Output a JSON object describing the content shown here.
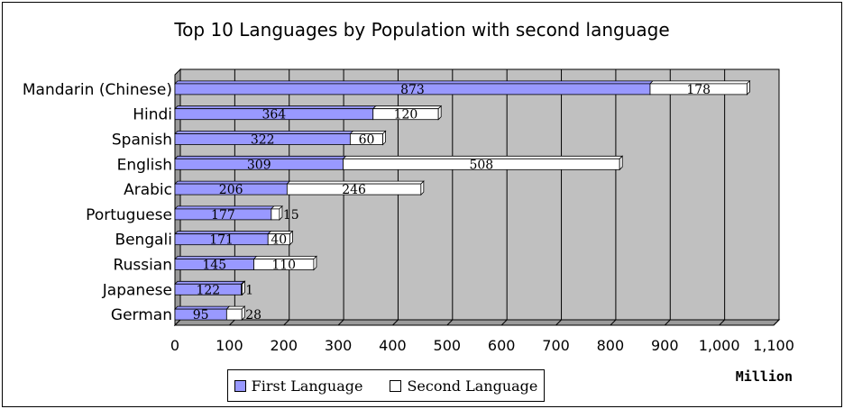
{
  "chart_data": {
    "type": "bar",
    "orientation": "horizontal",
    "stacked": true,
    "title": "Top 10 Languages by Population with second language",
    "categories": [
      "Mandarin (Chinese)",
      "Hindi",
      "Spanish",
      "English",
      "Arabic",
      "Portuguese",
      "Bengali",
      "Russian",
      "Japanese",
      "German"
    ],
    "series": [
      {
        "name": "First Language",
        "color": "#9999ff",
        "values": [
          873,
          364,
          322,
          309,
          206,
          177,
          171,
          145,
          122,
          95
        ]
      },
      {
        "name": "Second Language",
        "color": "#ffffff",
        "values": [
          178,
          120,
          60,
          508,
          246,
          15,
          40,
          110,
          1,
          28
        ]
      }
    ],
    "xlabel": "Million",
    "xlim": [
      0,
      1100
    ],
    "xticks": [
      "0",
      "100",
      "200",
      "300",
      "400",
      "500",
      "600",
      "700",
      "800",
      "900",
      "1,000",
      "1,100"
    ],
    "grid": true,
    "plot_background": "#c0c0c0",
    "legend_position": "bottom"
  }
}
